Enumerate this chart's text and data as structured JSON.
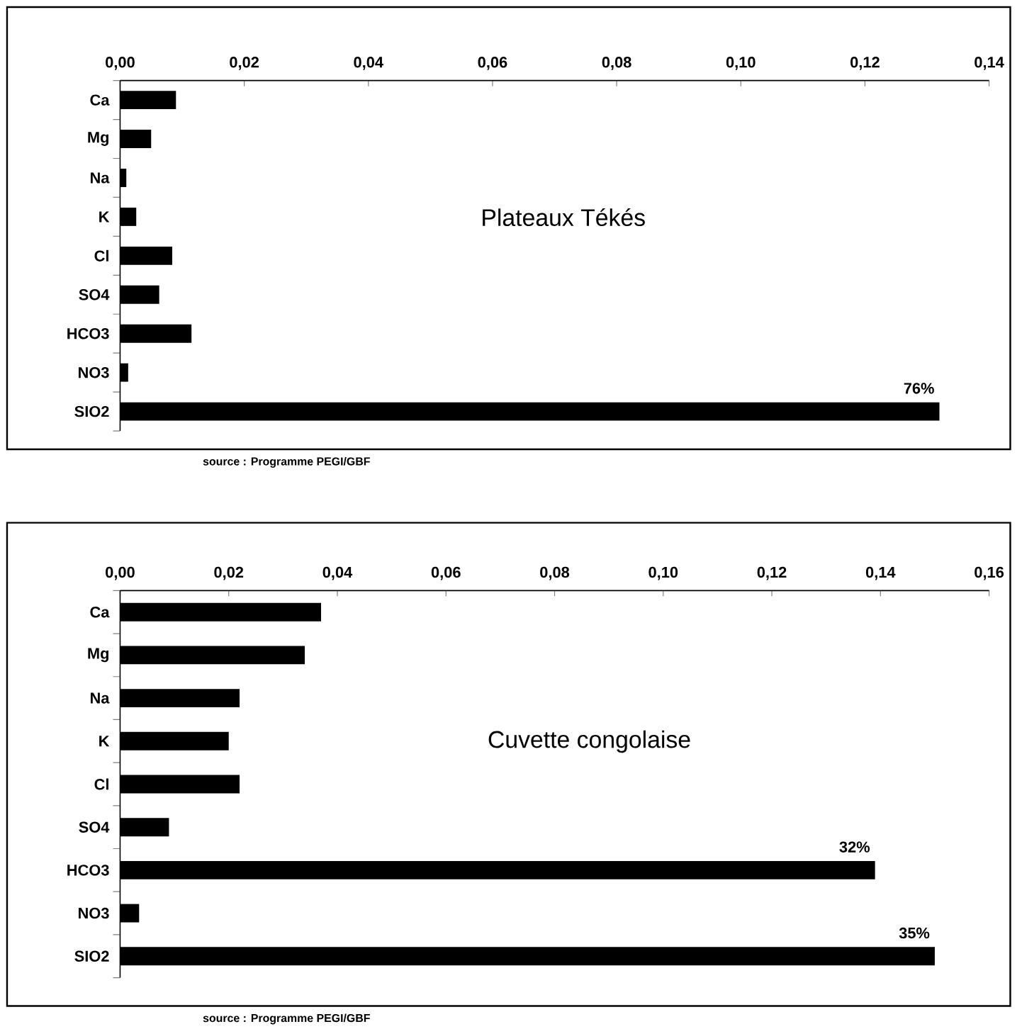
{
  "chart_data": [
    {
      "type": "bar",
      "orientation": "horizontal",
      "title": "Plateaux Tékés",
      "categories": [
        "Ca",
        "Mg",
        "Na",
        "K",
        "Cl",
        "SO4",
        "HCO3",
        "NO3",
        "SIO2"
      ],
      "values": [
        0.009,
        0.005,
        0.001,
        0.0026,
        0.0084,
        0.0063,
        0.0115,
        0.0013,
        0.132
      ],
      "color": "#000000",
      "xlim": [
        0,
        0.14
      ],
      "xticks": [
        {
          "value": 0,
          "label": "0,00"
        },
        {
          "value": 0.02,
          "label": "0,02"
        },
        {
          "value": 0.04,
          "label": "0,04"
        },
        {
          "value": 0.06,
          "label": "0,06"
        },
        {
          "value": 0.08,
          "label": "0,08"
        },
        {
          "value": 0.1,
          "label": "0,10"
        },
        {
          "value": 0.12,
          "label": "0,12"
        },
        {
          "value": 0.14,
          "label": "0,14"
        }
      ],
      "annotations": [
        {
          "text": "76%",
          "x": 0.132,
          "y": "SIO2"
        },
        "source : Programme PEGI/GBF"
      ]
    },
    {
      "type": "bar",
      "orientation": "horizontal",
      "title": "Cuvette congolaise",
      "categories": [
        "Ca",
        "Mg",
        "Na",
        "K",
        "Cl",
        "SO4",
        "HCO3",
        "NO3",
        "SIO2"
      ],
      "values": [
        0.037,
        0.034,
        0.022,
        0.02,
        0.022,
        0.009,
        0.139,
        0.0035,
        0.15
      ],
      "color": "#000000",
      "xlim": [
        0,
        0.16
      ],
      "xticks": [
        {
          "value": 0,
          "label": "0,00"
        },
        {
          "value": 0.02,
          "label": "0,02"
        },
        {
          "value": 0.04,
          "label": "0,04"
        },
        {
          "value": 0.06,
          "label": "0,06"
        },
        {
          "value": 0.08,
          "label": "0,08"
        },
        {
          "value": 0.1,
          "label": "0,10"
        },
        {
          "value": 0.12,
          "label": "0,12"
        },
        {
          "value": 0.14,
          "label": "0,14"
        },
        {
          "value": 0.16,
          "label": "0,16"
        }
      ],
      "annotations": [
        {
          "text": "32%",
          "x": 0.139,
          "y": "HCO3"
        },
        {
          "text": "35%",
          "x": 0.15,
          "y": "SIO2"
        },
        "source : Programme PEGI/GBF"
      ]
    }
  ]
}
